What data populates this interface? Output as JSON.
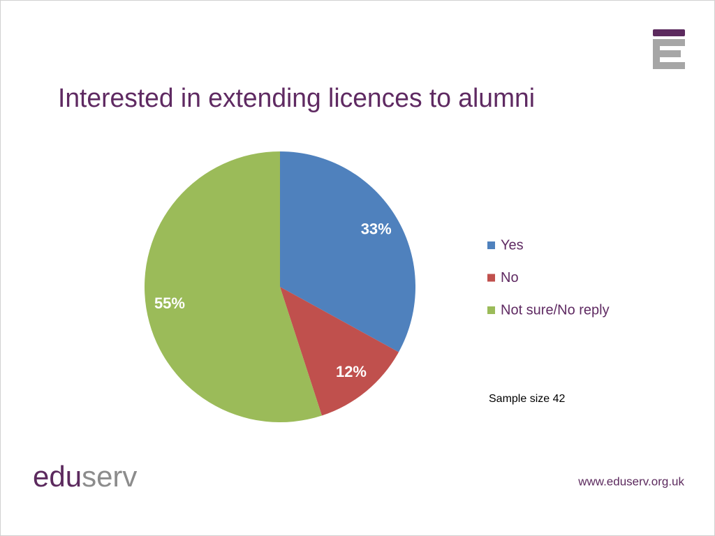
{
  "chart_data": {
    "type": "pie",
    "title": "Interested in extending licences to alumni",
    "categories": [
      "Yes",
      "No",
      "Not sure/No reply"
    ],
    "values": [
      33,
      12,
      55
    ],
    "value_labels": [
      "33%",
      "12%",
      "55%"
    ],
    "colors": [
      "#4f81bd",
      "#c0504d",
      "#9bbb59"
    ],
    "annotation": "Sample size 42",
    "legend": "right"
  },
  "footer": {
    "logo": [
      "edu",
      "serv"
    ],
    "url": "www.eduserv.org.uk"
  }
}
